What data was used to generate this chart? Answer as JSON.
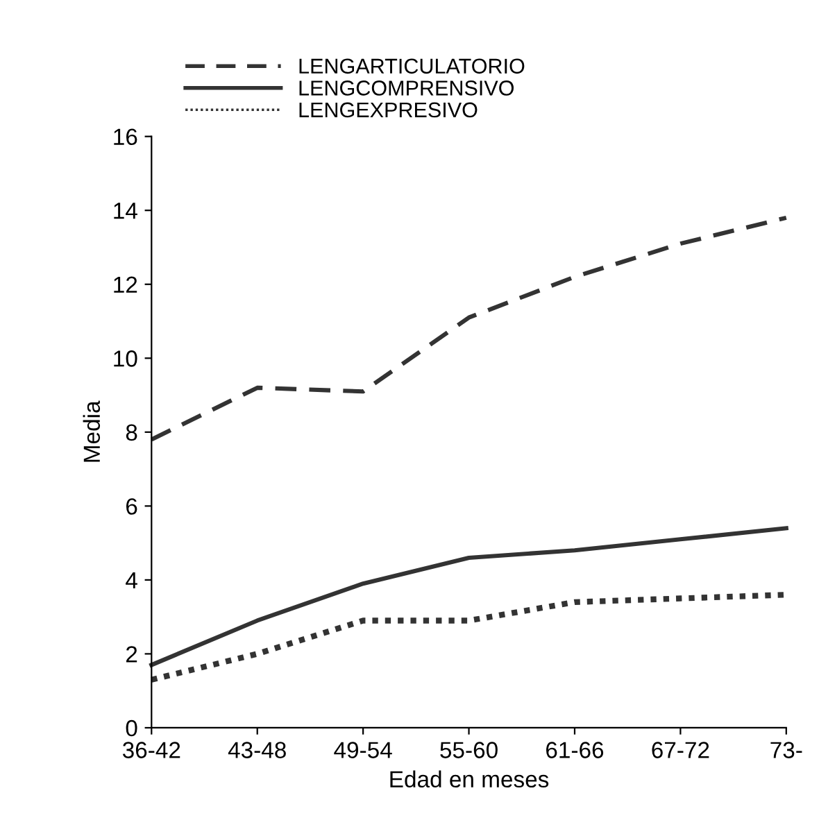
{
  "chart_data": {
    "type": "line",
    "xlabel": "Edad en meses",
    "ylabel": "Media",
    "categories": [
      "36-42",
      "43-48",
      "49-54",
      "55-60",
      "61-66",
      "67-72",
      "73-"
    ],
    "ylim": [
      0,
      16
    ],
    "yticks": [
      0,
      2,
      4,
      6,
      8,
      10,
      12,
      14,
      16
    ],
    "grid": false,
    "legend": "top left",
    "marker": "none",
    "series": [
      {
        "name": "LENGARTICULATORIO",
        "color": "#333333",
        "line_style": "dashed",
        "values": [
          7.8,
          9.2,
          9.1,
          11.1,
          12.2,
          13.1,
          13.8
        ]
      },
      {
        "name": "LENGCOMPRENSIVO",
        "color": "#333333",
        "line_style": "solid",
        "values": [
          1.7,
          2.9,
          3.9,
          4.6,
          4.8,
          5.1,
          5.4
        ]
      },
      {
        "name": "LENGEXPRESIVO",
        "color": "#333333",
        "line_style": "dotted",
        "values": [
          1.3,
          2.0,
          2.9,
          2.9,
          3.4,
          3.5,
          3.6
        ]
      }
    ]
  }
}
